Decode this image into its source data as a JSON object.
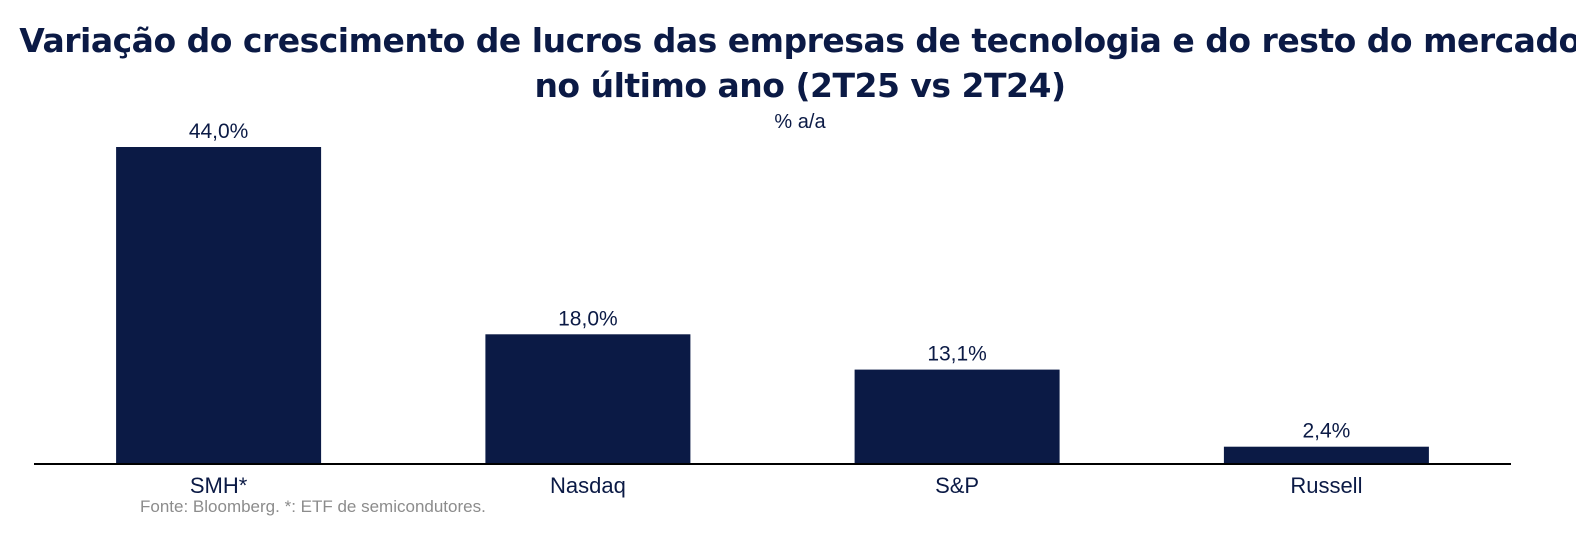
{
  "title": {
    "line1": "Variação do crescimento de lucros das empresas de tecnologia e do resto do mercado",
    "line2": "no último ano (2T25 vs 2T24)"
  },
  "subtitle": "% a/a",
  "source": "Fonte: Bloomberg. *: ETF de semicondutores.",
  "colors": {
    "bar": "#0b1a45",
    "axis": "#000000",
    "text": "#0b1a45",
    "source": "#8c8c8c"
  },
  "chart_data": {
    "type": "bar",
    "categories": [
      "SMH*",
      "Nasdaq",
      "S&P",
      "Russell"
    ],
    "values": [
      44.0,
      18.0,
      13.1,
      2.4
    ],
    "data_labels": [
      "44,0%",
      "18,0%",
      "13,1%",
      "2,4%"
    ],
    "title": "Variação do crescimento de lucros das empresas de tecnologia e do resto do mercado no último ano (2T25 vs 2T24)",
    "subtitle": "% a/a",
    "ylim": [
      0,
      44
    ],
    "grid": false,
    "legend": "none"
  }
}
